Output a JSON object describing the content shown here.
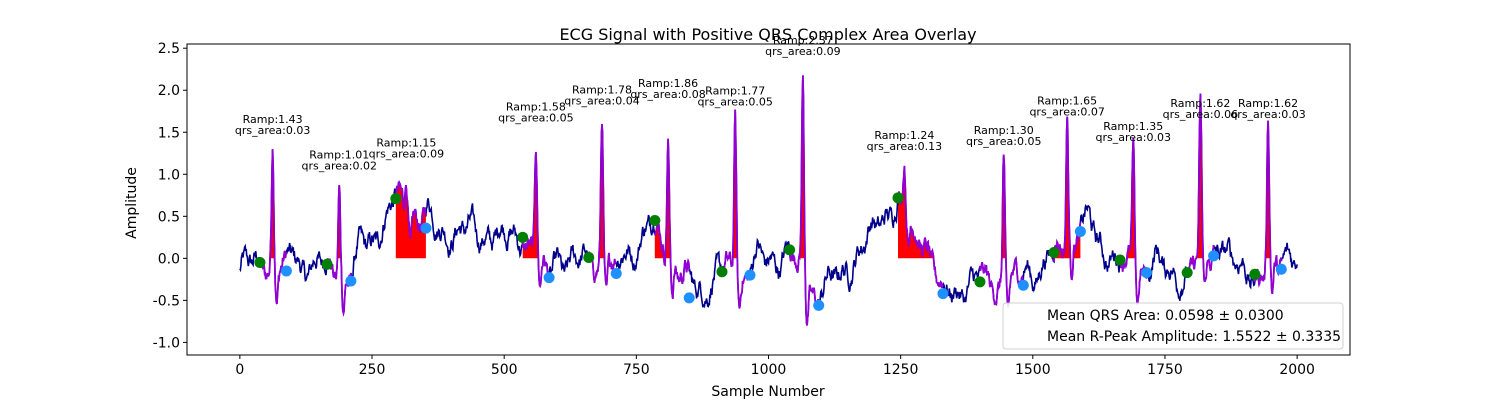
{
  "chart_data": {
    "type": "line",
    "title": "ECG Signal with Positive QRS Complex Area Overlay",
    "xlabel": "Sample Number",
    "ylabel": "Amplitude",
    "xlim": [
      -100,
      2100
    ],
    "ylim": [
      -1.15,
      2.55
    ],
    "x_ticks": [
      0,
      250,
      500,
      750,
      1000,
      1250,
      1500,
      1750,
      2000
    ],
    "y_ticks": [
      -1.0,
      -0.5,
      0.0,
      0.5,
      1.0,
      1.5,
      2.0,
      2.5
    ],
    "colors": {
      "signal": "#00008b",
      "qrs_segment": "#9400d3",
      "qrs_fill": "#ff0000",
      "onset_marker": "#008000",
      "offset_marker": "#1e90ff"
    },
    "beats": [
      {
        "onset_x": 38,
        "onset_y": -0.05,
        "r_x": 62,
        "r_amp_label": "Ramp:1.43",
        "r_y": 1.43,
        "qrs_label": "qrs_area:0.03",
        "offset_x": 88,
        "offset_y": -0.15
      },
      {
        "onset_x": 165,
        "onset_y": -0.07,
        "r_x": 188,
        "r_amp_label": "Ramp:1.01",
        "r_y": 1.01,
        "qrs_label": "qrs_area:0.02",
        "offset_x": 210,
        "offset_y": -0.27
      },
      {
        "onset_x": 295,
        "onset_y": 0.71,
        "r_x": 315,
        "r_amp_label": "Ramp:1.15",
        "r_y": 1.15,
        "qrs_label": "qrs_area:0.09",
        "offset_x": 352,
        "offset_y": 0.36
      },
      {
        "onset_x": 535,
        "onset_y": 0.25,
        "r_x": 560,
        "r_amp_label": "Ramp:1.58",
        "r_y": 1.58,
        "qrs_label": "qrs_area:0.05",
        "offset_x": 585,
        "offset_y": -0.23
      },
      {
        "onset_x": 660,
        "onset_y": 0.01,
        "r_x": 685,
        "r_amp_label": "Ramp:1.78",
        "r_y": 1.78,
        "qrs_label": "qrs_area:0.04",
        "offset_x": 712,
        "offset_y": -0.18
      },
      {
        "onset_x": 785,
        "onset_y": 0.45,
        "r_x": 810,
        "r_amp_label": "Ramp:1.86",
        "r_y": 1.86,
        "qrs_label": "qrs_area:0.08",
        "offset_x": 850,
        "offset_y": -0.47
      },
      {
        "onset_x": 912,
        "onset_y": -0.16,
        "r_x": 937,
        "r_amp_label": "Ramp:1.77",
        "r_y": 1.77,
        "qrs_label": "qrs_area:0.05",
        "offset_x": 965,
        "offset_y": -0.2
      },
      {
        "onset_x": 1040,
        "onset_y": 0.1,
        "r_x": 1065,
        "r_amp_label": "Ramp:2.37",
        "r_y": 2.37,
        "qrs_label": "qrs_area:0.09",
        "offset_x": 1095,
        "offset_y": -0.56
      },
      {
        "onset_x": 1245,
        "onset_y": 0.72,
        "r_x": 1257,
        "r_amp_label": "Ramp:1.24",
        "r_y": 1.24,
        "qrs_label": "qrs_area:0.13",
        "offset_x": 1330,
        "offset_y": -0.42
      },
      {
        "onset_x": 1400,
        "onset_y": -0.28,
        "r_x": 1445,
        "r_amp_label": "Ramp:1.30",
        "r_y": 1.3,
        "qrs_label": "qrs_area:0.05",
        "offset_x": 1482,
        "offset_y": -0.32
      },
      {
        "onset_x": 1540,
        "onset_y": 0.07,
        "r_x": 1565,
        "r_amp_label": "Ramp:1.65",
        "r_y": 1.65,
        "qrs_label": "qrs_area:0.07",
        "offset_x": 1590,
        "offset_y": 0.32
      },
      {
        "onset_x": 1665,
        "onset_y": -0.02,
        "r_x": 1690,
        "r_amp_label": "Ramp:1.35",
        "r_y": 1.35,
        "qrs_label": "qrs_area:0.03",
        "offset_x": 1715,
        "offset_y": -0.17
      },
      {
        "onset_x": 1792,
        "onset_y": -0.17,
        "r_x": 1817,
        "r_amp_label": "Ramp:1.62",
        "r_y": 1.62,
        "qrs_label": "qrs_area:0.06",
        "offset_x": 1842,
        "offset_y": 0.03
      },
      {
        "onset_x": 1920,
        "onset_y": -0.19,
        "r_x": 1945,
        "r_amp_label": "Ramp:1.62",
        "r_y": 1.62,
        "qrs_label": "qrs_area:0.03",
        "offset_x": 1970,
        "offset_y": -0.13
      }
    ],
    "legend": {
      "placement": "lower-right",
      "entries": [
        "Mean QRS Area: 0.0598 ± 0.0300",
        "Mean R-Peak Amplitude: 1.5522 ± 0.3335"
      ]
    }
  }
}
